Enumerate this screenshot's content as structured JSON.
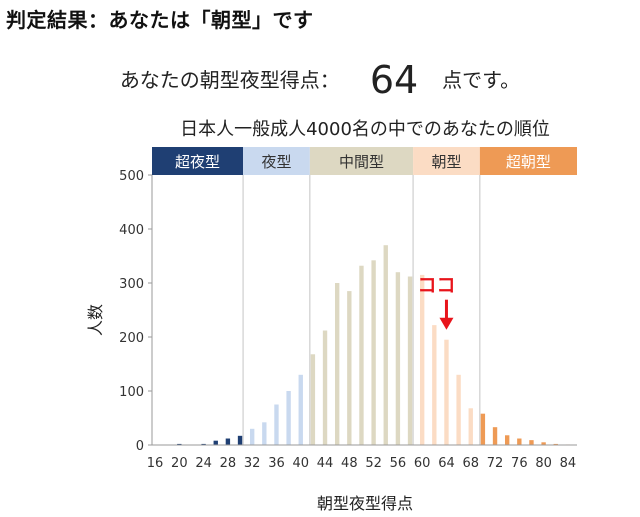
{
  "header": {
    "title": "判定結果：あなたは「朝型」です"
  },
  "score": {
    "prefix": "あなたの朝型夜型得点：",
    "value": "64",
    "suffix": "点です。"
  },
  "chart_data": {
    "type": "bar",
    "title": "日本人一般成人4000名の中でのあなたの順位",
    "xlabel": "朝型夜型得点",
    "ylabel": "人数",
    "ylim": [
      0,
      500
    ],
    "yticks": [
      0,
      100,
      200,
      300,
      400,
      500
    ],
    "xlim": [
      16,
      86
    ],
    "xticks": [
      16,
      20,
      24,
      28,
      32,
      36,
      40,
      44,
      48,
      52,
      56,
      60,
      64,
      68,
      72,
      76,
      80,
      84
    ],
    "grid": false,
    "bands": [
      {
        "label": "超夜型",
        "from": 16,
        "to": 31,
        "color": "#1f3f73",
        "text_color": "#ffffff"
      },
      {
        "label": "夜型",
        "from": 31,
        "to": 42,
        "color": "#c9d9ef",
        "text_color": "#333333"
      },
      {
        "label": "中間型",
        "from": 42,
        "to": 59,
        "color": "#ddd8c2",
        "text_color": "#333333"
      },
      {
        "label": "朝型",
        "from": 59,
        "to": 70,
        "color": "#fbdcc4",
        "text_color": "#333333"
      },
      {
        "label": "超朝型",
        "from": 70,
        "to": 86,
        "color": "#ee9a55",
        "text_color": "#ffffff"
      }
    ],
    "x": [
      16,
      17,
      18,
      19,
      20,
      21,
      22,
      23,
      24,
      25,
      26,
      27,
      28,
      29,
      30,
      31,
      32,
      33,
      34,
      35,
      36,
      37,
      38,
      39,
      40,
      41,
      42,
      43,
      44,
      45,
      46,
      47,
      48,
      49,
      50,
      51,
      52,
      53,
      54,
      55,
      56,
      57,
      58,
      59,
      60,
      61,
      62,
      63,
      64,
      65,
      66,
      67,
      68,
      69,
      70,
      71,
      72,
      73,
      74,
      75,
      76,
      77,
      78,
      79,
      80,
      81,
      82,
      83,
      84,
      85
    ],
    "values": [
      0,
      0,
      0,
      0,
      2,
      0,
      0,
      0,
      2,
      0,
      8,
      0,
      12,
      0,
      17,
      0,
      30,
      0,
      42,
      0,
      75,
      0,
      100,
      0,
      130,
      0,
      168,
      0,
      212,
      0,
      300,
      0,
      285,
      0,
      332,
      0,
      342,
      0,
      370,
      0,
      320,
      0,
      312,
      0,
      315,
      0,
      222,
      0,
      195,
      0,
      130,
      0,
      68,
      0,
      58,
      0,
      33,
      0,
      18,
      0,
      12,
      0,
      9,
      0,
      5,
      0,
      2,
      0,
      1,
      0
    ],
    "annotation": {
      "label": "ココ",
      "x": 64,
      "color": "#e8141b"
    }
  }
}
